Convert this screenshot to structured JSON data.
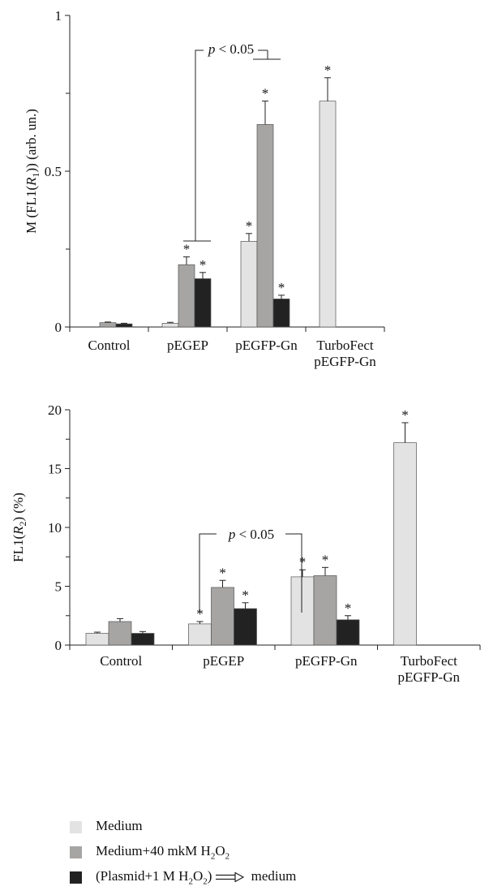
{
  "colors": {
    "medium": "#e3e3e3",
    "medium_h2o2": "#a6a5a3",
    "plasmid": "#222222",
    "axis": "#222222"
  },
  "series": [
    {
      "name": "Medium",
      "color_key": "medium"
    },
    {
      "name": "Medium+40 mkM H2O2",
      "color_key": "medium_h2o2"
    },
    {
      "name": "(Plasmid+1 M H2O2) medium",
      "color_key": "plasmid"
    }
  ],
  "legend": {
    "item0": {
      "text": "Medium"
    },
    "item1": {
      "pre": "Medium+40 mkM H",
      "sub": "2",
      "post": "O",
      "sub2": "2"
    },
    "item2": {
      "pre": "(Plasmid+1 M H",
      "sub": "2",
      "mid": "O",
      "sub2": "2",
      "post": ")",
      "tail": " medium"
    }
  },
  "chart_data": [
    {
      "type": "bar",
      "ylabel": {
        "pre": "M (FL1(",
        "italic": "R",
        "sub": "1",
        "post": "))  (arb. un.)"
      },
      "ylim": [
        0,
        1
      ],
      "yticks": [
        0,
        0.5,
        1
      ],
      "ytick_labels": [
        "0",
        "0.5",
        "1"
      ],
      "minor_yticks": [
        0.25,
        0.75
      ],
      "categories": [
        "Control",
        "pEGEP",
        "pEGFP-Gn",
        "TurboFect pEGFP-Gn"
      ],
      "category_lines": [
        [
          "Control"
        ],
        [
          "pEGEP"
        ],
        [
          "pEGFP-Gn"
        ],
        [
          "TurboFect",
          "pEGFP-Gn"
        ]
      ],
      "series": [
        {
          "name": "Medium",
          "values": [
            null,
            0.012,
            0.275,
            0.725
          ],
          "errors": [
            null,
            0.003,
            0.025,
            0.075
          ],
          "stars": [
            false,
            false,
            true,
            true
          ]
        },
        {
          "name": "Medium+40 mkM H2O2",
          "values": [
            0.014,
            0.2,
            0.65,
            null
          ],
          "errors": [
            0.002,
            0.025,
            0.075,
            null
          ],
          "stars": [
            false,
            true,
            true,
            false
          ]
        },
        {
          "name": "(Plasmid+1 M H2O2) medium",
          "values": [
            0.01,
            0.155,
            0.09,
            null
          ],
          "errors": [
            0.002,
            0.02,
            0.012,
            null
          ],
          "stars": [
            false,
            true,
            true,
            false
          ]
        }
      ],
      "annotation": {
        "text": "p < 0.05"
      }
    },
    {
      "type": "bar",
      "ylabel": {
        "pre": "FL1(",
        "italic": "R",
        "sub": "2",
        "post": ") (%)"
      },
      "ylim": [
        0,
        20
      ],
      "yticks": [
        0,
        5,
        10,
        15,
        20
      ],
      "ytick_labels": [
        "0",
        "5",
        "10",
        "15",
        "20"
      ],
      "minor_yticks": [
        2.5,
        7.5,
        12.5,
        17.5
      ],
      "categories": [
        "Control",
        "pEGEP",
        "pEGFP-Gn",
        "TurboFect pEGFP-Gn"
      ],
      "category_lines": [
        [
          "Control"
        ],
        [
          "pEGEP"
        ],
        [
          "pEGFP-Gn"
        ],
        [
          "TurboFect",
          "pEGFP-Gn"
        ]
      ],
      "series": [
        {
          "name": "Medium",
          "values": [
            1.0,
            1.8,
            5.8,
            17.2
          ],
          "errors": [
            0.1,
            0.2,
            0.6,
            1.7
          ],
          "stars": [
            false,
            true,
            true,
            true
          ]
        },
        {
          "name": "Medium+40 mkM H2O2",
          "values": [
            2.0,
            4.9,
            5.9,
            null
          ],
          "errors": [
            0.25,
            0.6,
            0.7,
            null
          ],
          "stars": [
            false,
            true,
            true,
            false
          ]
        },
        {
          "name": "(Plasmid+1 M H2O2) medium",
          "values": [
            1.0,
            3.1,
            2.15,
            null
          ],
          "errors": [
            0.15,
            0.5,
            0.35,
            null
          ],
          "stars": [
            false,
            true,
            true,
            false
          ]
        }
      ],
      "annotation": {
        "text": "p < 0.05"
      }
    }
  ]
}
